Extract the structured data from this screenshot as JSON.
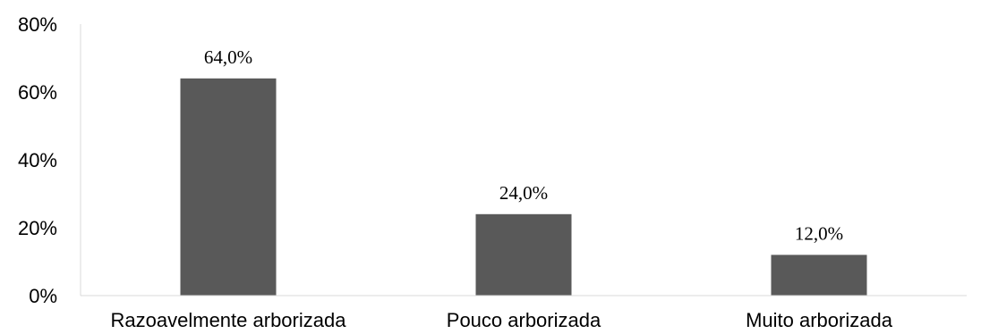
{
  "chart_data": {
    "type": "bar",
    "title": "",
    "xlabel": "",
    "ylabel": "",
    "categories": [
      "Razoavelmente arborizada",
      "Pouco arborizada",
      "Muito arborizada"
    ],
    "values": [
      64.0,
      24.0,
      12.0
    ],
    "data_labels": [
      "64,0%",
      "24,0%",
      "12,0%"
    ],
    "ylim": [
      0,
      80
    ],
    "yticks": [
      0,
      20,
      40,
      60,
      80
    ],
    "ytick_labels": [
      "0%",
      "20%",
      "40%",
      "60%",
      "80%"
    ],
    "grid": false,
    "legend": "none",
    "bar_color": "#595959",
    "axis_color": "#d9d9d9"
  }
}
